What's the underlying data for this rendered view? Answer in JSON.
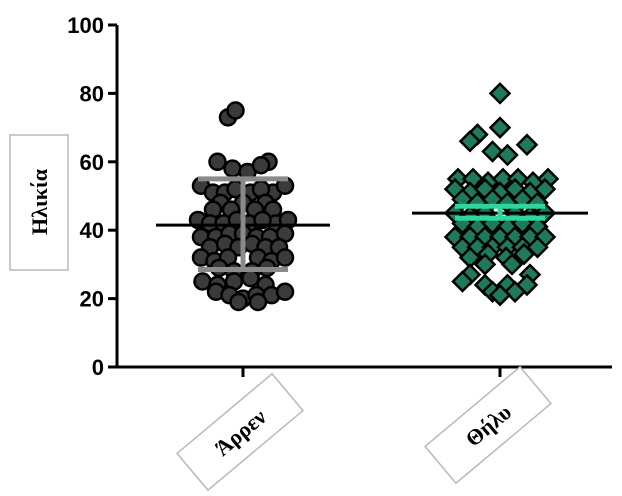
{
  "chart_data": {
    "type": "scatter",
    "title": "",
    "xlabel": "",
    "ylabel": "Ηλικία",
    "ylim": [
      0,
      100
    ],
    "yticks": [
      0,
      20,
      40,
      60,
      80,
      100
    ],
    "categories": [
      "Άρρεν",
      "Θήλυ"
    ],
    "grid": false,
    "legend": "none",
    "series": [
      {
        "category": "Άρρεν",
        "marker": "circle",
        "color": "#3a3a3a",
        "mean": 41.5,
        "sd_low": 28.5,
        "sd_high": 55,
        "points": [
          [
            -0.1,
            73
          ],
          [
            -0.05,
            75
          ],
          [
            -0.17,
            60
          ],
          [
            0.17,
            60
          ],
          [
            -0.07,
            58
          ],
          [
            0.03,
            57
          ],
          [
            0.12,
            59
          ],
          [
            -0.28,
            53
          ],
          [
            -0.2,
            51
          ],
          [
            0.2,
            51
          ],
          [
            0.28,
            53
          ],
          [
            -0.12,
            51
          ],
          [
            -0.05,
            52
          ],
          [
            0.05,
            51
          ],
          [
            0.12,
            52
          ],
          [
            -0.15,
            48
          ],
          [
            0.0,
            48
          ],
          [
            0.15,
            48
          ],
          [
            -0.2,
            46
          ],
          [
            0.2,
            46
          ],
          [
            -0.08,
            46
          ],
          [
            0.08,
            46
          ],
          [
            -0.3,
            43
          ],
          [
            -0.22,
            42
          ],
          [
            0.22,
            42
          ],
          [
            0.3,
            43
          ],
          [
            -0.13,
            42
          ],
          [
            -0.04,
            43
          ],
          [
            0.04,
            42
          ],
          [
            0.13,
            43
          ],
          [
            -0.28,
            38
          ],
          [
            -0.18,
            38
          ],
          [
            -0.09,
            39
          ],
          [
            0.0,
            39
          ],
          [
            0.09,
            38
          ],
          [
            0.18,
            38
          ],
          [
            0.28,
            39
          ],
          [
            -0.22,
            35
          ],
          [
            -0.12,
            36
          ],
          [
            -0.03,
            35
          ],
          [
            0.06,
            36
          ],
          [
            0.15,
            35
          ],
          [
            0.24,
            35
          ],
          [
            -0.28,
            32
          ],
          [
            -0.19,
            31
          ],
          [
            -0.1,
            32
          ],
          [
            0.1,
            32
          ],
          [
            0.19,
            31
          ],
          [
            0.28,
            32
          ],
          [
            -0.16,
            29
          ],
          [
            -0.06,
            28
          ],
          [
            0.06,
            28
          ],
          [
            0.16,
            29
          ],
          [
            -0.27,
            25
          ],
          [
            -0.17,
            24
          ],
          [
            -0.06,
            25
          ],
          [
            0.05,
            26
          ],
          [
            0.15,
            24
          ],
          [
            -0.18,
            22
          ],
          [
            -0.09,
            21
          ],
          [
            0.0,
            20
          ],
          [
            0.09,
            21
          ],
          [
            0.19,
            21
          ],
          [
            0.28,
            22
          ],
          [
            -0.03,
            19
          ],
          [
            0.1,
            19
          ]
        ]
      },
      {
        "category": "Θήλυ",
        "marker": "diamond",
        "color": "#1f7a5c",
        "mean": 45,
        "sd_low": 43.5,
        "sd_high": 47,
        "points": [
          [
            0.0,
            80
          ],
          [
            -0.15,
            68
          ],
          [
            0.0,
            70
          ],
          [
            -0.05,
            63
          ],
          [
            0.05,
            62
          ],
          [
            0.18,
            65
          ],
          [
            -0.2,
            66
          ],
          [
            -0.28,
            55
          ],
          [
            -0.18,
            55
          ],
          [
            -0.08,
            54
          ],
          [
            0.02,
            55
          ],
          [
            0.12,
            55
          ],
          [
            0.22,
            54
          ],
          [
            0.32,
            55
          ],
          [
            -0.3,
            52
          ],
          [
            -0.2,
            51
          ],
          [
            -0.1,
            52
          ],
          [
            0.0,
            51
          ],
          [
            0.1,
            52
          ],
          [
            0.2,
            51
          ],
          [
            0.3,
            52
          ],
          [
            -0.25,
            49
          ],
          [
            -0.15,
            48
          ],
          [
            -0.05,
            49
          ],
          [
            0.05,
            48
          ],
          [
            0.15,
            49
          ],
          [
            0.25,
            48
          ],
          [
            -0.3,
            45
          ],
          [
            -0.2,
            44
          ],
          [
            -0.1,
            45
          ],
          [
            0.1,
            45
          ],
          [
            0.2,
            44
          ],
          [
            0.3,
            45
          ],
          [
            -0.25,
            42
          ],
          [
            -0.15,
            41
          ],
          [
            -0.05,
            42
          ],
          [
            0.05,
            41
          ],
          [
            0.15,
            42
          ],
          [
            0.25,
            41
          ],
          [
            -0.3,
            38
          ],
          [
            -0.2,
            38
          ],
          [
            -0.1,
            38
          ],
          [
            0.0,
            38
          ],
          [
            0.1,
            38
          ],
          [
            0.2,
            38
          ],
          [
            0.3,
            38
          ],
          [
            -0.25,
            35
          ],
          [
            -0.15,
            35
          ],
          [
            -0.05,
            35
          ],
          [
            0.05,
            35
          ],
          [
            0.15,
            35
          ],
          [
            0.25,
            35
          ],
          [
            -0.2,
            32
          ],
          [
            -0.08,
            33
          ],
          [
            0.04,
            32
          ],
          [
            0.16,
            33
          ],
          [
            -0.1,
            30
          ],
          [
            0.08,
            30
          ],
          [
            -0.2,
            27
          ],
          [
            0.2,
            27
          ],
          [
            -0.25,
            25
          ],
          [
            -0.1,
            24
          ],
          [
            0.05,
            24
          ],
          [
            0.18,
            24
          ],
          [
            -0.05,
            22
          ],
          [
            0.1,
            22
          ],
          [
            0.0,
            21
          ]
        ]
      }
    ]
  }
}
